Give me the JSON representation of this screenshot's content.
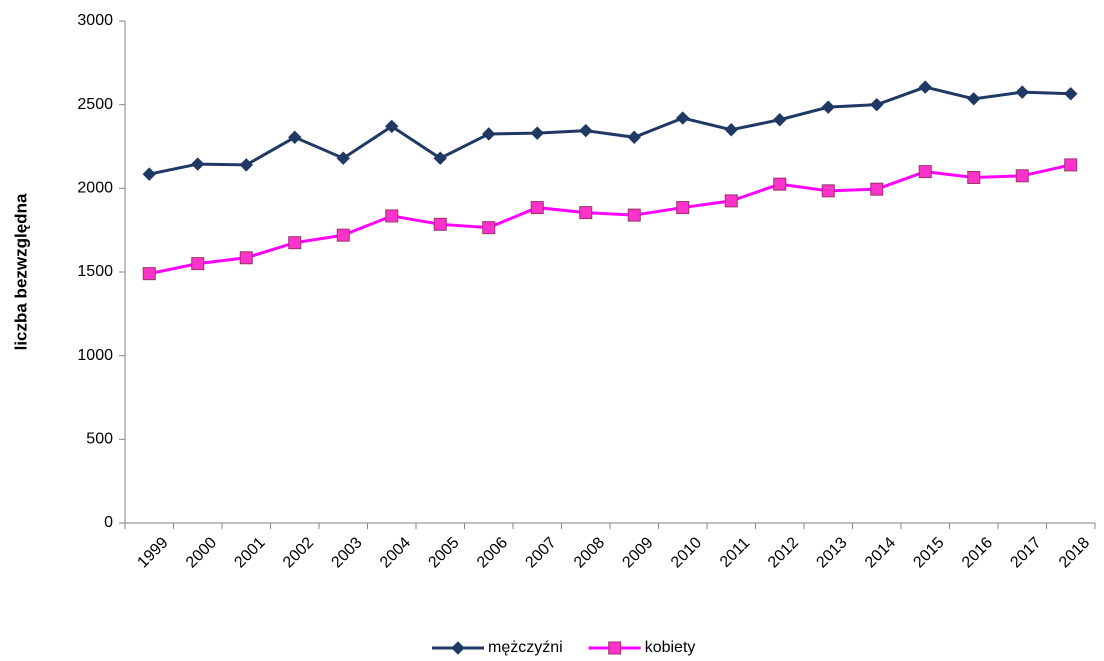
{
  "chart_data": {
    "type": "line",
    "y_label": "liczba bezwzględna",
    "categories": [
      "1999",
      "2000",
      "2001",
      "2002",
      "2003",
      "2004",
      "2005",
      "2006",
      "2007",
      "2008",
      "2009",
      "2010",
      "2011",
      "2012",
      "2013",
      "2014",
      "2015",
      "2016",
      "2017",
      "2018"
    ],
    "series": [
      {
        "name": "mężczyźni",
        "color": "#1f3864",
        "marker": "diamond",
        "marker_fill": "#1f3864",
        "values": [
          2085,
          2145,
          2140,
          2305,
          2180,
          2370,
          2180,
          2325,
          2330,
          2345,
          2305,
          2420,
          2350,
          2410,
          2485,
          2500,
          2605,
          2535,
          2575,
          2565
        ]
      },
      {
        "name": "kobiety",
        "color": "#ff00ff",
        "marker": "square",
        "marker_fill": "#ff33cc",
        "marker_edge": "#993366",
        "values": [
          1490,
          1550,
          1585,
          1675,
          1720,
          1835,
          1785,
          1765,
          1885,
          1855,
          1840,
          1885,
          1925,
          2025,
          1985,
          1995,
          2100,
          2065,
          2075,
          2140
        ]
      }
    ],
    "ylim": [
      0,
      3000
    ],
    "yticks": [
      0,
      500,
      1000,
      1500,
      2000,
      2500,
      3000
    ],
    "grid": false,
    "legend": "bottom"
  }
}
